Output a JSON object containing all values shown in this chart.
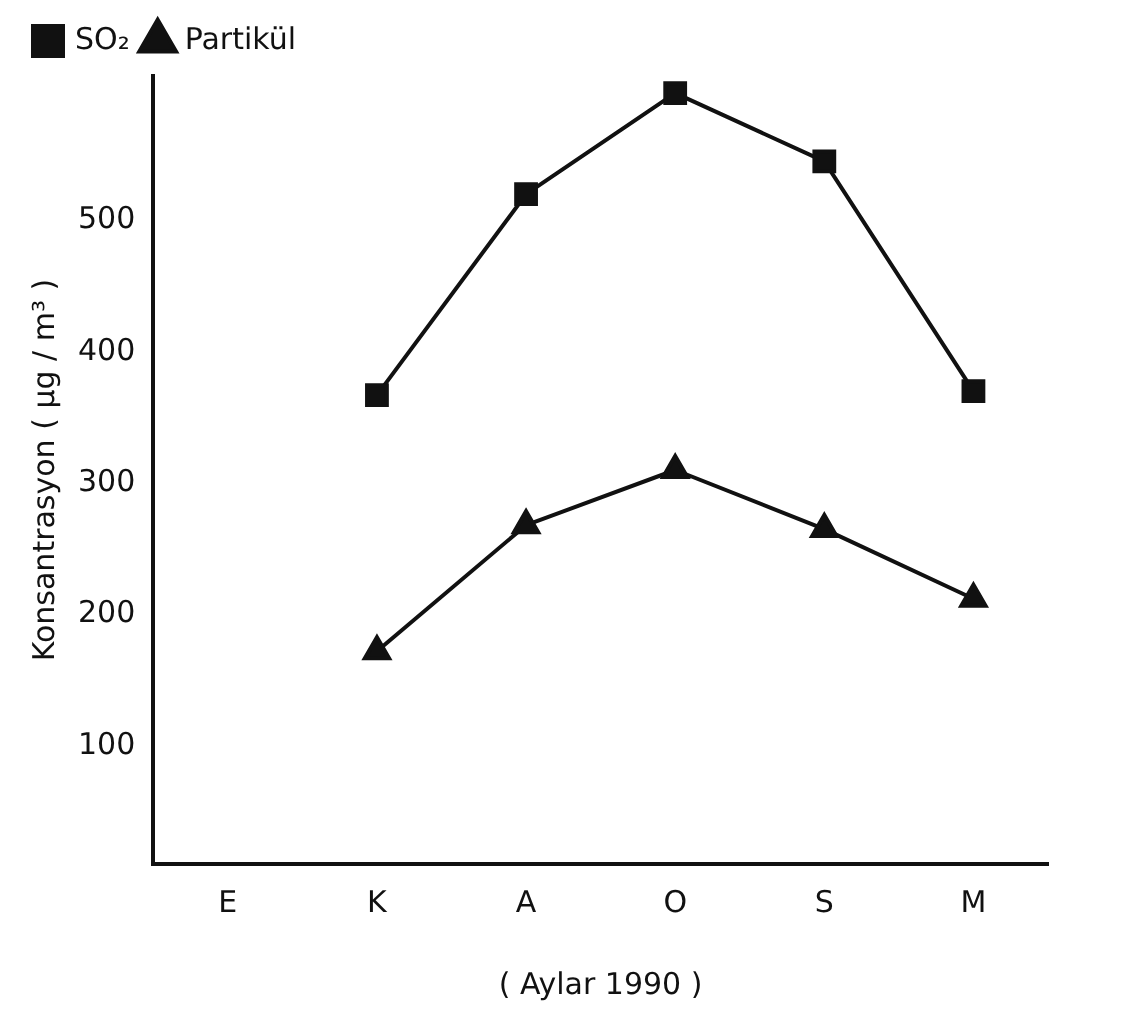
{
  "chart_data": {
    "type": "line",
    "xlabel": "( Aylar 1990 )",
    "ylabel": "Konsantrasyon ( µg / m³ )",
    "categories": [
      "E",
      "K",
      "A",
      "O",
      "S",
      "M"
    ],
    "series": [
      {
        "name": "SO₂",
        "color": "#111111",
        "marker": "square",
        "values": [
          null,
          367,
          520,
          597,
          545,
          370
        ]
      },
      {
        "name": "Partikül",
        "color": "#111111",
        "marker": "triangle",
        "values": [
          null,
          172,
          268,
          310,
          265,
          212
        ]
      }
    ],
    "ylim": [
      10,
      610
    ],
    "yticks": [
      100,
      200,
      300,
      400,
      500
    ],
    "grid": false,
    "legend": "top left",
    "line_style": "solid"
  }
}
